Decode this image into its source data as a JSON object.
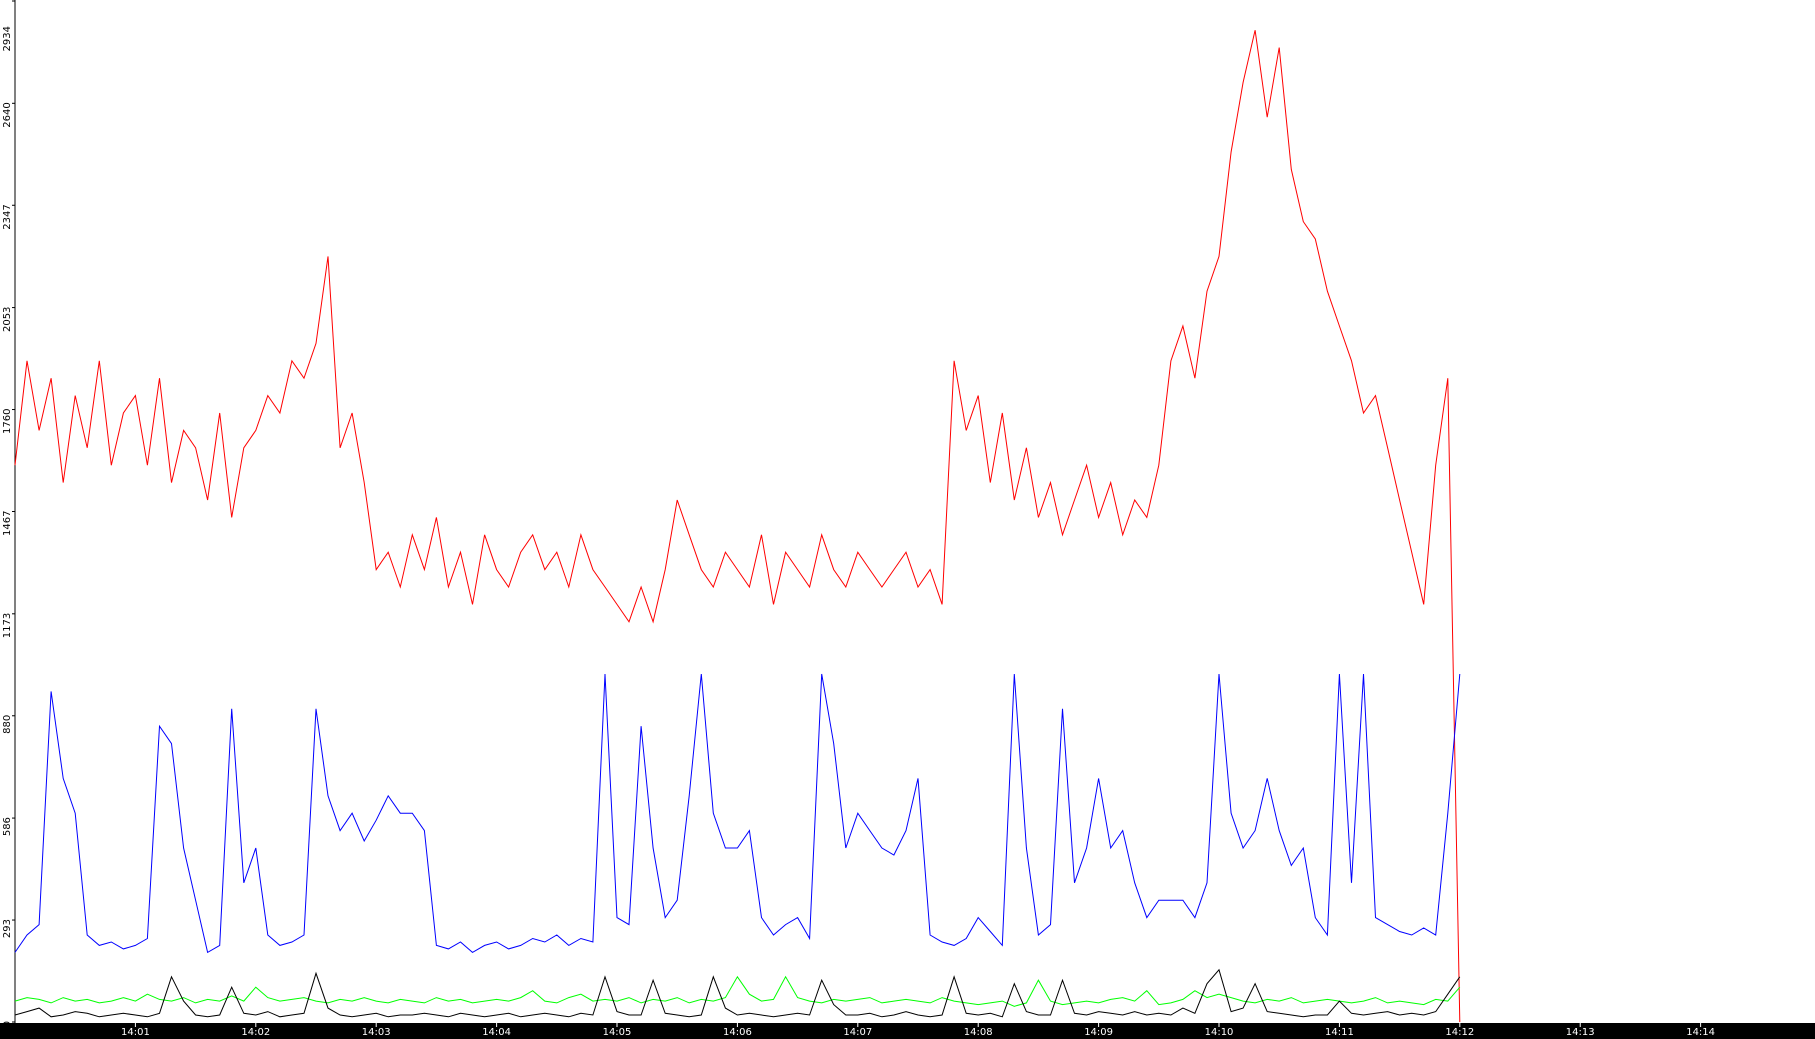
{
  "chart_data": {
    "type": "line",
    "x": [
      0,
      0.1,
      0.2,
      0.3,
      0.4,
      0.5,
      0.6,
      0.7,
      0.8,
      0.9,
      1,
      1.1,
      1.2,
      1.3,
      1.4,
      1.5,
      1.6,
      1.7,
      1.8,
      1.9,
      2,
      2.1,
      2.2,
      2.3,
      2.4,
      2.5,
      2.6,
      2.7,
      2.8,
      2.9,
      3,
      3.1,
      3.2,
      3.3,
      3.4,
      3.5,
      3.6,
      3.7,
      3.8,
      3.9,
      4,
      4.1,
      4.2,
      4.3,
      4.4,
      4.5,
      4.6,
      4.7,
      4.8,
      4.9,
      5,
      5.1,
      5.2,
      5.3,
      5.4,
      5.5,
      5.6,
      5.7,
      5.8,
      5.9,
      6,
      6.1,
      6.2,
      6.3,
      6.4,
      6.5,
      6.6,
      6.7,
      6.8,
      6.9,
      7,
      7.1,
      7.2,
      7.3,
      7.4,
      7.5,
      7.6,
      7.7,
      7.8,
      7.9,
      8,
      8.1,
      8.2,
      8.3,
      8.4,
      8.5,
      8.6,
      8.7,
      8.8,
      8.9,
      9,
      9.1,
      9.2,
      9.3,
      9.4,
      9.5,
      9.6,
      9.7,
      9.8,
      9.9,
      10,
      10.1,
      10.2,
      10.3,
      10.4,
      10.5,
      10.6,
      10.7,
      10.8,
      10.9,
      11,
      11.1,
      11.2,
      11.3,
      11.4,
      11.5,
      11.6,
      11.7,
      11.8,
      11.9,
      12
    ],
    "xlim": [
      0,
      14.95
    ],
    "xticks": [
      {
        "value": 1,
        "label": "14:01"
      },
      {
        "value": 2,
        "label": "14:02"
      },
      {
        "value": 3,
        "label": "14:03"
      },
      {
        "value": 4,
        "label": "14:04"
      },
      {
        "value": 5,
        "label": "14:05"
      },
      {
        "value": 6,
        "label": "14:06"
      },
      {
        "value": 7,
        "label": "14:07"
      },
      {
        "value": 8,
        "label": "14:08"
      },
      {
        "value": 9,
        "label": "14:09"
      },
      {
        "value": 10,
        "label": "14:10"
      },
      {
        "value": 11,
        "label": "14:11"
      },
      {
        "value": 12,
        "label": "14:12"
      },
      {
        "value": 13,
        "label": "14:13"
      },
      {
        "value": 14,
        "label": "14:14"
      }
    ],
    "ylim": [
      0,
      2934
    ],
    "yticks": [
      0,
      293,
      586,
      880,
      1173,
      1467,
      1760,
      2053,
      2347,
      2640,
      2934
    ],
    "series": [
      {
        "color": "#ff0000",
        "values": [
          1600,
          1900,
          1700,
          1850,
          1550,
          1800,
          1650,
          1900,
          1600,
          1750,
          1800,
          1600,
          1850,
          1550,
          1700,
          1650,
          1500,
          1750,
          1450,
          1650,
          1700,
          1800,
          1750,
          1900,
          1850,
          1950,
          2200,
          1650,
          1750,
          1550,
          1300,
          1350,
          1250,
          1400,
          1300,
          1450,
          1250,
          1350,
          1200,
          1400,
          1300,
          1250,
          1350,
          1400,
          1300,
          1350,
          1250,
          1400,
          1300,
          1250,
          1200,
          1150,
          1250,
          1150,
          1300,
          1500,
          1400,
          1300,
          1250,
          1350,
          1300,
          1250,
          1400,
          1200,
          1350,
          1300,
          1250,
          1400,
          1300,
          1250,
          1350,
          1300,
          1250,
          1300,
          1350,
          1250,
          1300,
          1200,
          1900,
          1700,
          1800,
          1550,
          1750,
          1500,
          1650,
          1450,
          1550,
          1400,
          1500,
          1600,
          1450,
          1550,
          1400,
          1500,
          1450,
          1600,
          1900,
          2000,
          1850,
          2100,
          2200,
          2500,
          2700,
          2850,
          2600,
          2800,
          2450,
          2300,
          2250,
          2100,
          2000,
          1900,
          1750,
          1800,
          1650,
          1500,
          1350,
          1200,
          1600,
          1850,
          0
        ]
      },
      {
        "color": "#0000ff",
        "values": [
          200,
          250,
          280,
          950,
          700,
          600,
          250,
          220,
          230,
          210,
          220,
          240,
          850,
          800,
          500,
          350,
          200,
          220,
          900,
          400,
          500,
          250,
          220,
          230,
          250,
          900,
          650,
          550,
          600,
          520,
          580,
          650,
          600,
          600,
          550,
          220,
          210,
          230,
          200,
          220,
          230,
          210,
          220,
          240,
          230,
          250,
          220,
          240,
          230,
          1000,
          300,
          280,
          850,
          500,
          300,
          350,
          650,
          1000,
          600,
          500,
          500,
          550,
          300,
          250,
          280,
          300,
          240,
          1000,
          800,
          500,
          600,
          550,
          500,
          480,
          550,
          700,
          250,
          230,
          220,
          240,
          300,
          260,
          220,
          1000,
          500,
          250,
          280,
          900,
          400,
          500,
          700,
          500,
          550,
          400,
          300,
          350,
          350,
          350,
          300,
          400,
          1000,
          600,
          500,
          550,
          700,
          550,
          450,
          500,
          300,
          250,
          1000,
          400,
          1000,
          300,
          280,
          260,
          250,
          270,
          250,
          600,
          1000
        ]
      },
      {
        "color": "#00ff00",
        "values": [
          60,
          70,
          65,
          55,
          70,
          60,
          65,
          55,
          60,
          70,
          60,
          80,
          65,
          60,
          70,
          55,
          65,
          60,
          75,
          60,
          100,
          70,
          60,
          65,
          70,
          60,
          55,
          65,
          60,
          70,
          60,
          55,
          65,
          60,
          55,
          70,
          60,
          65,
          55,
          60,
          65,
          60,
          70,
          90,
          60,
          55,
          70,
          80,
          60,
          65,
          60,
          70,
          55,
          65,
          60,
          70,
          55,
          65,
          60,
          70,
          130,
          80,
          60,
          65,
          130,
          70,
          60,
          55,
          65,
          60,
          65,
          70,
          55,
          60,
          65,
          60,
          55,
          70,
          60,
          55,
          50,
          55,
          60,
          45,
          55,
          120,
          60,
          50,
          55,
          60,
          55,
          65,
          70,
          60,
          90,
          50,
          55,
          65,
          90,
          70,
          80,
          70,
          60,
          55,
          65,
          60,
          70,
          55,
          60,
          65,
          60,
          55,
          60,
          70,
          55,
          60,
          55,
          50,
          65,
          60,
          100
        ]
      },
      {
        "color": "#000000",
        "values": [
          20,
          30,
          40,
          15,
          20,
          30,
          25,
          15,
          20,
          25,
          20,
          15,
          25,
          130,
          60,
          20,
          15,
          20,
          100,
          25,
          20,
          30,
          15,
          20,
          25,
          140,
          40,
          20,
          15,
          20,
          25,
          15,
          20,
          20,
          25,
          20,
          15,
          25,
          20,
          15,
          20,
          25,
          15,
          20,
          25,
          20,
          15,
          25,
          20,
          130,
          30,
          20,
          20,
          120,
          25,
          20,
          15,
          20,
          130,
          40,
          20,
          25,
          20,
          15,
          20,
          25,
          20,
          120,
          50,
          20,
          20,
          25,
          15,
          20,
          30,
          20,
          15,
          20,
          130,
          25,
          20,
          25,
          15,
          110,
          30,
          20,
          20,
          120,
          25,
          20,
          30,
          25,
          20,
          30,
          20,
          25,
          20,
          40,
          25,
          110,
          150,
          30,
          40,
          110,
          30,
          25,
          20,
          15,
          20,
          20,
          60,
          25,
          20,
          25,
          30,
          20,
          25,
          20,
          30,
          80,
          130
        ]
      }
    ]
  }
}
